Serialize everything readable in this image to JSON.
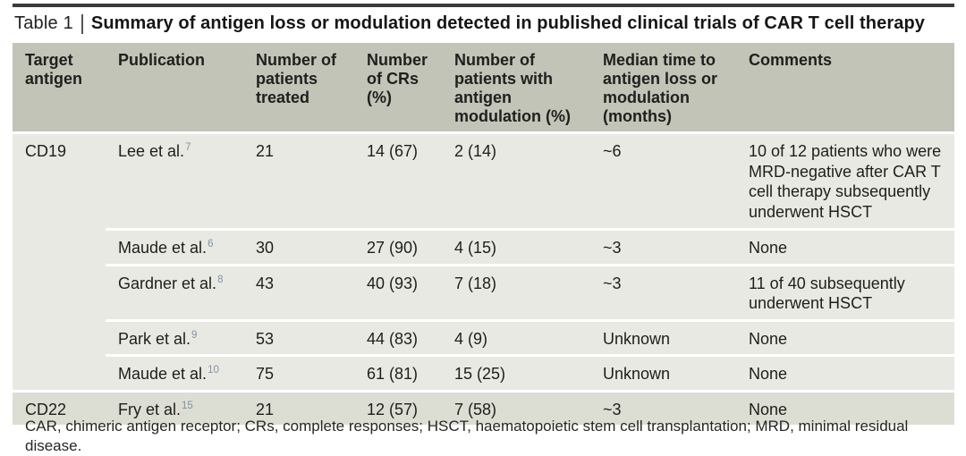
{
  "title": {
    "prefix": "Table 1",
    "text": "Summary of antigen loss or modulation detected in published clinical trials of CAR T cell therapy"
  },
  "table": {
    "columns": [
      "Target antigen",
      "Publication",
      "Number of patients treated",
      "Number of CRs (%)",
      "Number of patients with antigen modulation (%)",
      "Median time to antigen loss or modulation (months)",
      "Comments"
    ],
    "rows": [
      {
        "target": "CD19",
        "publication": "Lee et al.",
        "ref": "7",
        "patients": "21",
        "crs": "14 (67)",
        "modulation": "2 (14)",
        "median": "~6",
        "comments": "10 of 12 patients who were MRD-negative after CAR T cell therapy subsequently underwent HSCT"
      },
      {
        "target": "",
        "publication": "Maude et al.",
        "ref": "6",
        "patients": "30",
        "crs": "27 (90)",
        "modulation": "4 (15)",
        "median": "~3",
        "comments": "None"
      },
      {
        "target": "",
        "publication": "Gardner et al.",
        "ref": "8",
        "patients": "43",
        "crs": "40 (93)",
        "modulation": "7 (18)",
        "median": "~3",
        "comments": "11 of 40 subsequently underwent HSCT"
      },
      {
        "target": "",
        "publication": "Park et al.",
        "ref": "9",
        "patients": "53",
        "crs": "44 (83)",
        "modulation": "4 (9)",
        "median": "Unknown",
        "comments": "None"
      },
      {
        "target": "",
        "publication": "Maude et al.",
        "ref": "10",
        "patients": "75",
        "crs": "61 (81)",
        "modulation": "15 (25)",
        "median": "Unknown",
        "comments": "None"
      },
      {
        "target": "CD22",
        "publication": "Fry et al.",
        "ref": "15",
        "patients": "21",
        "crs": "12 (57)",
        "modulation": "7 (58)",
        "median": "~3",
        "comments": "None"
      }
    ],
    "footnote": "CAR, chimeric antigen receptor; CRs, complete responses; HSCT, haematopoietic stem cell transplantation; MRD, minimal residual disease."
  },
  "colors": {
    "header_bg": "#c3c4b8",
    "group_cd19_bg": "#e9e9e4",
    "group_cd22_bg": "#dcded4",
    "row_separator": "#ffffff",
    "top_rule": "#3a3a38",
    "reference_superscript": "#8293a6",
    "text": "#1e1e1c"
  }
}
